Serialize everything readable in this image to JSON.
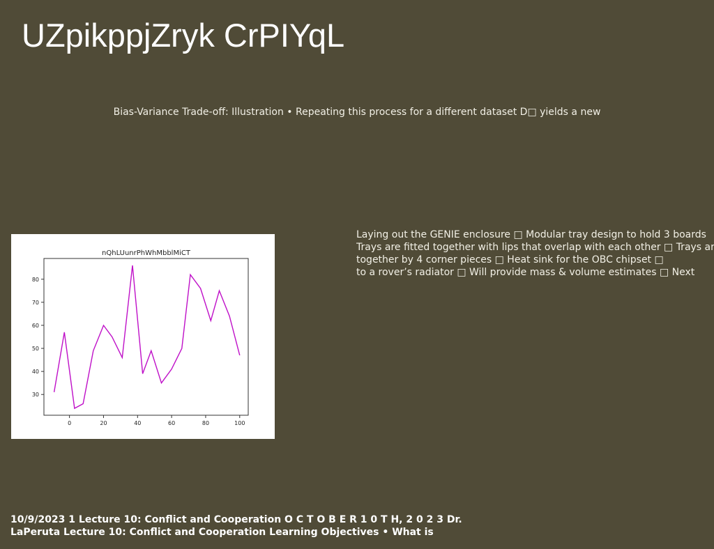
{
  "slide": {
    "title": "UZpikppjZryk CrPIYqL",
    "subtitle": "Bias-Variance Trade-off: Illustration • Repeating this process for a different dataset D□ yields a new",
    "body_lines": [
      "Laying out the GENIE enclosure □ Modular tray design to hold 3 boards",
      "Trays are fitted together with lips that overlap with each other □ Trays are",
      "together by 4 corner pieces □ Heat sink for the OBC chipset □",
      "to a rover’s radiator □ Will provide mass & volume estimates □ Next"
    ],
    "footer_lines": [
      "10/9/2023 1 Lecture 10: Conflict and Cooperation O C T O B E R 1 0 T H, 2 0 2 3 Dr.",
      "LaPeruta Lecture 10: Conflict and Cooperation Learning Objectives • What is"
    ],
    "colors": {
      "background": "#504b37",
      "line": "#bf10c8"
    }
  },
  "chart_data": {
    "type": "line",
    "title": "nQhLUunrPhWhMbblMiCT",
    "xlabel": "",
    "ylabel": "",
    "xlim": [
      -15,
      105
    ],
    "ylim": [
      21,
      89
    ],
    "xticks": [
      0,
      20,
      40,
      60,
      80,
      100
    ],
    "yticks": [
      30,
      40,
      50,
      60,
      70,
      80
    ],
    "grid": false,
    "series": [
      {
        "x": [
          -9,
          -3,
          3,
          8,
          14,
          20,
          25,
          31,
          37,
          43,
          48,
          54,
          60,
          66,
          71,
          77,
          83,
          88,
          94,
          100
        ],
        "y": [
          31,
          57,
          24,
          26,
          49,
          60,
          55,
          46,
          86,
          39,
          49,
          35,
          41,
          50,
          82,
          76,
          62,
          75,
          64,
          47
        ],
        "color": "#bf10c8"
      }
    ]
  }
}
